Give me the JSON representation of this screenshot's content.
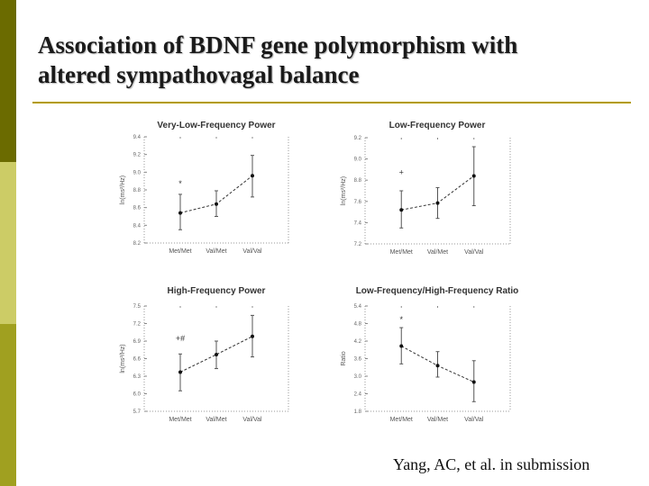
{
  "slide": {
    "title_line1": "Association of BDNF gene polymorphism with",
    "title_line2": "altered sympathovagal balance",
    "citation": "Yang, AC, et al. in submission"
  },
  "colors": {
    "accent_dark": "#6b6b00",
    "accent_light": "#cccc66",
    "rule": "#b39b00"
  },
  "chart_data": [
    {
      "type": "line",
      "title": "Very-Low-Frequency Power",
      "ylabel": "ln(ms²/Hz)",
      "categories": [
        "Met/Met",
        "Val/Met",
        "Val/Val"
      ],
      "values": [
        8.54,
        8.64,
        8.96
      ],
      "err_low": [
        8.35,
        8.5,
        8.72
      ],
      "err_high": [
        8.75,
        8.79,
        9.19
      ],
      "ylim": [
        8.2,
        9.4
      ],
      "yticks": [
        "9.4",
        "9.2",
        "9.0",
        "8.8",
        "8.6",
        "8.4",
        "8.2"
      ],
      "annotations": [
        {
          "text": "*",
          "cat": 0,
          "y": 8.84
        }
      ]
    },
    {
      "type": "line",
      "title": "Low-Frequency Power",
      "ylabel": "ln(ms²/Hz)",
      "categories": [
        "Met/Met",
        "Val/Met",
        "Val/Val"
      ],
      "values": [
        7.84,
        7.97,
        8.48
      ],
      "err_low": [
        7.5,
        7.68,
        7.92
      ],
      "err_high": [
        8.2,
        8.26,
        9.03
      ],
      "ylim": [
        7.2,
        9.2
      ],
      "yticks": [
        "9.2",
        "9.0",
        "8.8",
        "7.6",
        "7.4",
        "7.2"
      ],
      "annotations": [
        {
          "text": "+",
          "cat": 0,
          "y": 8.5
        }
      ]
    },
    {
      "type": "line",
      "title": "High-Frequency Power",
      "ylabel": "ln(ms²/Hz)",
      "categories": [
        "Met/Met",
        "Val/Met",
        "Val/Val"
      ],
      "values": [
        6.37,
        6.67,
        6.98
      ],
      "err_low": [
        6.05,
        6.43,
        6.63
      ],
      "err_high": [
        6.68,
        6.9,
        7.34
      ],
      "ylim": [
        5.7,
        7.5
      ],
      "yticks": [
        "7.5",
        "7.2",
        "6.9",
        "6.6",
        "6.3",
        "6.0",
        "5.7"
      ],
      "annotations": [
        {
          "text": "+#",
          "cat": 0,
          "y": 6.9
        }
      ]
    },
    {
      "type": "line",
      "title": "Low-Frequency/High-Frequency Ratio",
      "ylabel": "Ratio",
      "categories": [
        "Met/Met",
        "Val/Met",
        "Val/Val"
      ],
      "values": [
        4.03,
        3.36,
        2.8
      ],
      "err_low": [
        3.42,
        2.97,
        2.13
      ],
      "err_high": [
        4.66,
        3.84,
        3.53
      ],
      "ylim": [
        1.8,
        5.4
      ],
      "yticks": [
        "5.4",
        "4.8",
        "4.2",
        "3.6",
        "3.0",
        "2.4",
        "1.8"
      ],
      "annotations": [
        {
          "text": "*",
          "cat": 0,
          "y": 4.85
        }
      ]
    }
  ]
}
